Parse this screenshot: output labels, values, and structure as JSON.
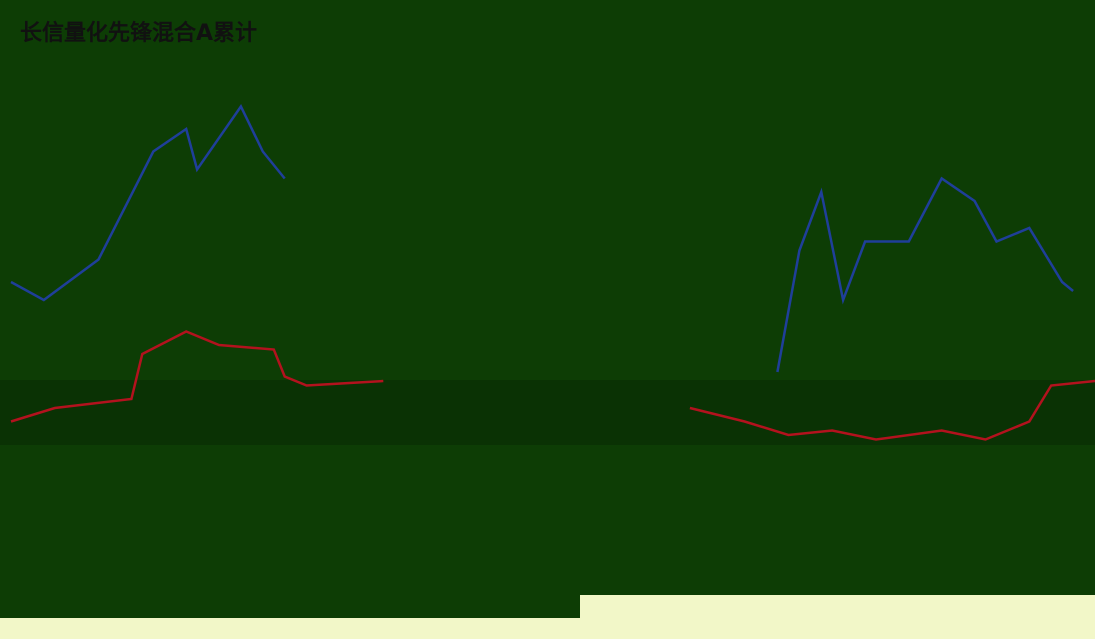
{
  "chart_data": {
    "type": "line",
    "title": "长信量化先锋混合A累计",
    "xlim": [
      0,
      100
    ],
    "ylim": [
      0,
      100
    ],
    "series": [
      {
        "color": "#1f3f9a",
        "x": [
          1,
          4,
          9,
          14,
          17,
          18,
          22,
          24,
          26,
          50,
          71,
          73,
          75,
          77,
          79,
          83,
          86,
          89,
          91,
          94,
          97,
          98
        ],
        "values": [
          44,
          40,
          49,
          73,
          78,
          69,
          83,
          73,
          67,
          null,
          24,
          51,
          64,
          40,
          53,
          53,
          67,
          62,
          53,
          56,
          44,
          42
        ]
      },
      {
        "color": "#b3121e",
        "x": [
          1,
          5,
          12,
          13,
          17,
          20,
          25,
          26,
          28,
          35,
          50,
          63,
          68,
          72,
          76,
          80,
          86,
          90,
          94,
          96,
          100
        ],
        "values": [
          13,
          16,
          18,
          28,
          33,
          30,
          29,
          23,
          21,
          22,
          null,
          16,
          13,
          10,
          11,
          9,
          11,
          9,
          13,
          21,
          22
        ]
      }
    ]
  }
}
